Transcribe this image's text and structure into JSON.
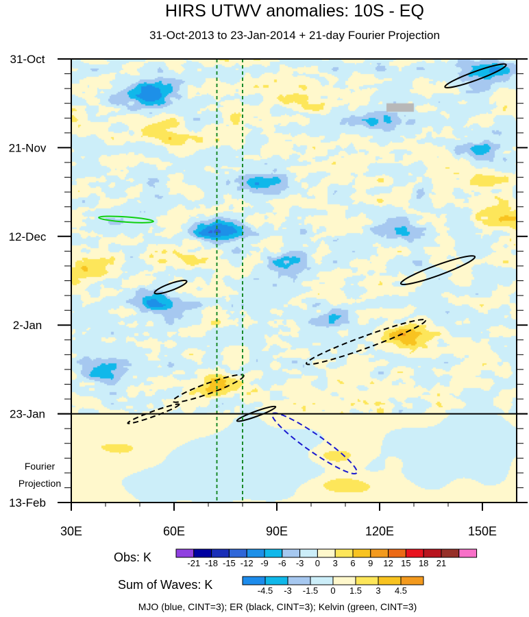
{
  "title": "HIRS UTWV anomalies: 10S - EQ",
  "subtitle": "31-Oct-2013 to 23-Jan-2014 + 21-day Fourier Projection",
  "chart_data": {
    "type": "heatmap",
    "description_note": "Hovmoller diagram: longitude (x) vs time (y, downward)",
    "x_range": [
      30,
      160
    ],
    "x_ticks": [
      30,
      60,
      90,
      120,
      150
    ],
    "x_tick_labels": [
      "30E",
      "60E",
      "90E",
      "120E",
      "150E"
    ],
    "y_dates": [
      "31-Oct",
      "21-Nov",
      "12-Dec",
      "2-Jan",
      "23-Jan",
      "13-Feb"
    ],
    "y_day_range": [
      0,
      105
    ],
    "y_tick_days": [
      0,
      21,
      42,
      63,
      84,
      105
    ],
    "observation_end_day": 84,
    "projection_label_line1": "Fourier",
    "projection_label_line2": "Projection",
    "obs_colorbar": {
      "title": "Obs: K",
      "labels": [
        "-21",
        "-18",
        "-15",
        "-12",
        "-9",
        "-6",
        "-3",
        "0",
        "3",
        "6",
        "9",
        "12",
        "15",
        "18",
        "21"
      ],
      "colors": [
        "#9040e0",
        "#0000a0",
        "#1a2fb8",
        "#2f66d8",
        "#1d90e8",
        "#10b8ea",
        "#a6c8f0",
        "#cceef9",
        "#fff8cc",
        "#fde65a",
        "#f8c320",
        "#f39a1e",
        "#ec6a16",
        "#e8131f",
        "#b8141e",
        "#963028",
        "#f870c8"
      ]
    },
    "waves_colorbar": {
      "title": "Sum of Waves: K",
      "labels": [
        "-4.5",
        "-3",
        "-1.5",
        "0",
        "1.5",
        "3",
        "4.5"
      ],
      "colors": [
        "#1d8cec",
        "#10b8ea",
        "#a6c8f0",
        "#cceef9",
        "#fff8cc",
        "#fde65a",
        "#f8c320",
        "#f39a1e"
      ]
    },
    "reference_longitudes": [
      72.5,
      80
    ],
    "contour_legend": "MJO (blue, CINT=3); ER (black, CINT=3); Kelvin (green, CINT=3)",
    "wave_contours": [
      {
        "wave": "ER",
        "style": "solid",
        "center_lon": 148,
        "center_day": 4,
        "length_deg": 19,
        "width_deg": 2.5
      },
      {
        "wave": "ER",
        "style": "solid",
        "center_lon": 137,
        "center_day": 50,
        "length_deg": 23,
        "width_deg": 3
      },
      {
        "wave": "ER",
        "style": "solid",
        "center_lon": 59,
        "center_day": 54,
        "length_deg": 10,
        "width_deg": 2
      },
      {
        "wave": "ER",
        "style": "dashed",
        "center_lon": 116,
        "center_day": 67,
        "length_deg": 37,
        "width_deg": 3.5
      },
      {
        "wave": "ER",
        "style": "dashed",
        "center_lon": 70,
        "center_day": 78,
        "length_deg": 22,
        "width_deg": 3
      },
      {
        "wave": "ER",
        "style": "dashed",
        "center_lon": 54,
        "center_day": 84,
        "length_deg": 16,
        "width_deg": 1.5
      },
      {
        "wave": "ER",
        "style": "solid",
        "center_lon": 84,
        "center_day": 84,
        "length_deg": 12,
        "width_deg": 1.5
      },
      {
        "wave": "MJO",
        "style": "dashed",
        "center_lon": 101,
        "center_day": 91,
        "length_deg": 30,
        "width_deg": 5
      },
      {
        "wave": "Kelvin",
        "style": "solid",
        "center_lon": 46,
        "center_day": 38,
        "length_deg": 16,
        "width_deg": 1.5
      }
    ],
    "warm_blobs": [
      {
        "lon": 74,
        "day": 77,
        "amp": 7
      },
      {
        "lon": 128,
        "day": 66,
        "amp": 10
      },
      {
        "lon": 32,
        "day": 50,
        "amp": 5
      },
      {
        "lon": 106,
        "day": 94,
        "amp": 3.5
      },
      {
        "lon": 108,
        "day": 101,
        "amp": 3
      },
      {
        "lon": 58,
        "day": 18,
        "amp": 4
      },
      {
        "lon": 150,
        "day": 30,
        "amp": 3
      },
      {
        "lon": 60,
        "day": 47,
        "amp": 4
      },
      {
        "lon": 100,
        "day": 10,
        "amp": 3.5
      },
      {
        "lon": 43,
        "day": 92,
        "amp": 2.5
      },
      {
        "lon": 156,
        "day": 38,
        "amp": 4
      }
    ],
    "cold_blobs": [
      {
        "lon": 52,
        "day": 8,
        "amp": -11
      },
      {
        "lon": 73,
        "day": 41,
        "amp": -12
      },
      {
        "lon": 56,
        "day": 58,
        "amp": -9
      },
      {
        "lon": 86,
        "day": 30,
        "amp": -8
      },
      {
        "lon": 126,
        "day": 41,
        "amp": -6
      },
      {
        "lon": 150,
        "day": 21,
        "amp": -6
      },
      {
        "lon": 40,
        "day": 74,
        "amp": -7
      },
      {
        "lon": 105,
        "day": 62,
        "amp": -5
      },
      {
        "lon": 120,
        "day": 15,
        "amp": -5
      },
      {
        "lon": 152,
        "day": 3,
        "amp": -8
      },
      {
        "lon": 94,
        "day": 48,
        "amp": -6
      }
    ],
    "missing_data_box": {
      "lon_start": 122,
      "lon_end": 130,
      "day_start": 10.5,
      "day_end": 12.5
    }
  }
}
